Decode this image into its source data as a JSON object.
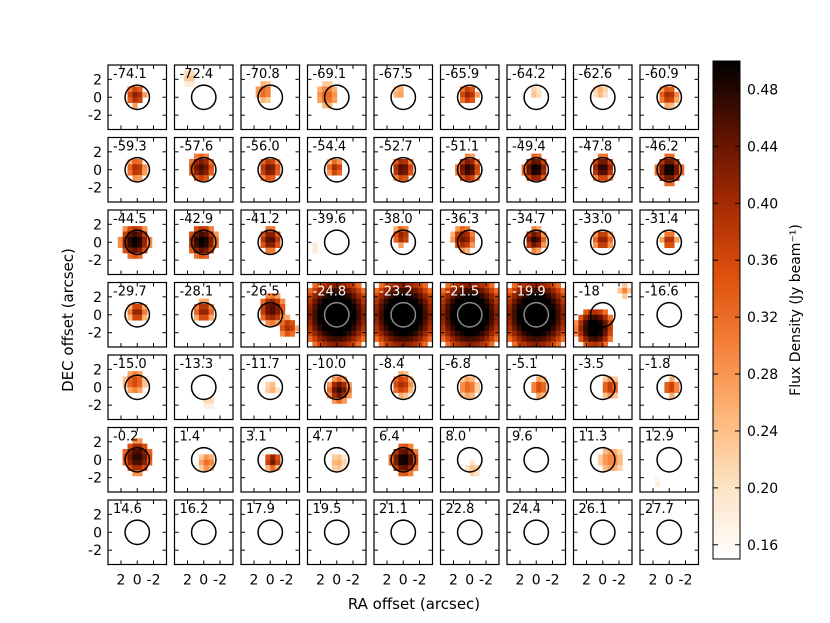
{
  "chart_data": {
    "type": "heatmap",
    "layout": "channel-map grid",
    "xlabel": "RA offset (arcsec)",
    "ylabel": "DEC offset (arcsec)",
    "xticks": [
      "2",
      "0",
      "-2"
    ],
    "yticks": [
      "-2",
      "0",
      "2"
    ],
    "xlim": [
      3.6,
      -3.6
    ],
    "ylim": [
      3.6,
      -3.6
    ],
    "circle_radius_arcsec": 1.5,
    "colorbar": {
      "label": "Flux Density (Jy beam⁻¹)",
      "ticks": [
        "0.16",
        "0.20",
        "0.24",
        "0.28",
        "0.32",
        "0.36",
        "0.40",
        "0.44",
        "0.48"
      ],
      "min": 0.15,
      "max": 0.5,
      "colormap": [
        "#ffffff",
        "#fde3c6",
        "#fdb77a",
        "#f5813a",
        "#dd4f0c",
        "#a52a03",
        "#5a1100",
        "#000000"
      ]
    },
    "panels": [
      {
        "label": "-74.1",
        "emission": [
          {
            "x": 0.2,
            "y": 0.2,
            "r": 1.2,
            "peak": 0.42
          }
        ]
      },
      {
        "label": "-72.4",
        "emission": [
          {
            "x": 1.8,
            "y": 2.2,
            "r": 0.8,
            "peak": 0.24
          }
        ]
      },
      {
        "label": "-70.8",
        "emission": [
          {
            "x": 0.8,
            "y": 0.6,
            "r": 1.1,
            "peak": 0.33
          }
        ]
      },
      {
        "label": "-69.1",
        "emission": [
          {
            "x": 1.2,
            "y": 0.2,
            "r": 1.4,
            "peak": 0.33
          }
        ]
      },
      {
        "label": "-67.5",
        "emission": [
          {
            "x": 0.5,
            "y": 0.5,
            "r": 0.8,
            "peak": 0.28
          }
        ]
      },
      {
        "label": "-65.9",
        "emission": [
          {
            "x": 0.2,
            "y": 0.3,
            "r": 1.2,
            "peak": 0.41
          }
        ]
      },
      {
        "label": "-64.2",
        "emission": [
          {
            "x": 0.2,
            "y": 0.5,
            "r": 0.7,
            "peak": 0.24
          }
        ]
      },
      {
        "label": "-62.6",
        "emission": [
          {
            "x": 0.3,
            "y": 0.7,
            "r": 0.8,
            "peak": 0.26
          }
        ]
      },
      {
        "label": "-60.9",
        "emission": [
          {
            "x": 0.1,
            "y": 0.2,
            "r": 1.2,
            "peak": 0.4
          }
        ]
      },
      {
        "label": "-59.3",
        "emission": [
          {
            "x": 0.1,
            "y": 0.1,
            "r": 1.2,
            "peak": 0.4
          }
        ]
      },
      {
        "label": "-57.6",
        "emission": [
          {
            "x": 0.3,
            "y": 0.2,
            "r": 1.6,
            "peak": 0.46
          }
        ]
      },
      {
        "label": "-56.0",
        "emission": [
          {
            "x": 0.1,
            "y": 0.1,
            "r": 1.4,
            "peak": 0.44
          }
        ]
      },
      {
        "label": "-54.4",
        "emission": [
          {
            "x": 0.2,
            "y": 0.2,
            "r": 1.0,
            "peak": 0.4
          }
        ]
      },
      {
        "label": "-52.7",
        "emission": [
          {
            "x": 0.1,
            "y": 0.1,
            "r": 1.4,
            "peak": 0.46
          }
        ]
      },
      {
        "label": "-51.1",
        "emission": [
          {
            "x": 0.2,
            "y": 0.1,
            "r": 1.5,
            "peak": 0.48
          }
        ]
      },
      {
        "label": "-49.4",
        "emission": [
          {
            "x": 0.1,
            "y": 0.1,
            "r": 1.6,
            "peak": 0.5
          }
        ]
      },
      {
        "label": "-47.8",
        "emission": [
          {
            "x": 0.0,
            "y": 0.2,
            "r": 1.5,
            "peak": 0.48
          }
        ]
      },
      {
        "label": "-46.2",
        "emission": [
          {
            "x": 0.0,
            "y": 0.0,
            "r": 1.7,
            "peak": 0.5
          }
        ]
      },
      {
        "label": "-44.5",
        "emission": [
          {
            "x": 0.3,
            "y": 0.1,
            "r": 1.9,
            "peak": 0.5
          }
        ]
      },
      {
        "label": "-42.9",
        "emission": [
          {
            "x": 0.2,
            "y": 0.1,
            "r": 1.9,
            "peak": 0.5
          }
        ]
      },
      {
        "label": "-41.2",
        "emission": [
          {
            "x": 0.0,
            "y": 0.3,
            "r": 1.4,
            "peak": 0.46
          }
        ]
      },
      {
        "label": "-39.6",
        "emission": [
          {
            "x": 2.8,
            "y": -0.6,
            "r": 0.5,
            "peak": 0.2
          }
        ]
      },
      {
        "label": "-38.0",
        "emission": [
          {
            "x": 0.2,
            "y": 0.7,
            "r": 1.1,
            "peak": 0.42
          }
        ]
      },
      {
        "label": "-36.3",
        "emission": [
          {
            "x": 0.8,
            "y": 0.4,
            "r": 1.4,
            "peak": 0.44
          }
        ]
      },
      {
        "label": "-34.7",
        "emission": [
          {
            "x": 0.2,
            "y": 0.3,
            "r": 1.3,
            "peak": 0.48
          }
        ]
      },
      {
        "label": "-33.0",
        "emission": [
          {
            "x": 0.0,
            "y": 0.3,
            "r": 1.2,
            "peak": 0.42
          }
        ]
      },
      {
        "label": "-31.4",
        "emission": [
          {
            "x": 0.0,
            "y": 0.2,
            "r": 1.0,
            "peak": 0.4
          }
        ]
      },
      {
        "label": "-29.7",
        "emission": [
          {
            "x": 0.0,
            "y": 0.3,
            "r": 1.1,
            "peak": 0.42
          }
        ]
      },
      {
        "label": "-28.1",
        "emission": [
          {
            "x": 0.0,
            "y": 0.4,
            "r": 1.2,
            "peak": 0.42
          }
        ]
      },
      {
        "label": "-26.5",
        "emission": [
          {
            "x": -0.2,
            "y": 0.6,
            "r": 1.7,
            "peak": 0.46
          },
          {
            "x": -2.2,
            "y": -1.4,
            "r": 1.2,
            "peak": 0.4
          }
        ]
      },
      {
        "label": "-24.8",
        "emission": [
          {
            "x": 0.0,
            "y": 0.0,
            "r": 4.5,
            "peak": 0.55
          }
        ]
      },
      {
        "label": "-23.2",
        "emission": [
          {
            "x": 0.0,
            "y": 0.0,
            "r": 4.5,
            "peak": 0.55
          }
        ]
      },
      {
        "label": "-21.5",
        "emission": [
          {
            "x": 0.0,
            "y": 0.0,
            "r": 4.5,
            "peak": 0.55
          }
        ]
      },
      {
        "label": "-19.9",
        "emission": [
          {
            "x": 0.0,
            "y": 0.0,
            "r": 4.5,
            "peak": 0.55
          }
        ]
      },
      {
        "label": "-18",
        "emission": [
          {
            "x": 1.0,
            "y": -1.5,
            "r": 2.4,
            "peak": 0.52
          },
          {
            "x": -2.7,
            "y": 2.7,
            "r": 0.7,
            "peak": 0.3
          }
        ]
      },
      {
        "label": "-16.6",
        "emission": []
      },
      {
        "label": "-15.0",
        "emission": [
          {
            "x": 0.3,
            "y": 0.6,
            "r": 1.3,
            "peak": 0.36
          }
        ]
      },
      {
        "label": "-13.3",
        "emission": [
          {
            "x": -0.6,
            "y": -1.6,
            "r": 0.6,
            "peak": 0.22
          }
        ]
      },
      {
        "label": "-11.7",
        "emission": [
          {
            "x": -0.2,
            "y": -0.1,
            "r": 0.8,
            "peak": 0.26
          }
        ]
      },
      {
        "label": "-10.0",
        "emission": [
          {
            "x": -0.3,
            "y": -0.3,
            "r": 1.4,
            "peak": 0.47
          }
        ]
      },
      {
        "label": "-8.4",
        "emission": [
          {
            "x": 0.2,
            "y": 0.3,
            "r": 1.3,
            "peak": 0.4
          }
        ]
      },
      {
        "label": "-6.8",
        "emission": [
          {
            "x": 0.2,
            "y": 0.0,
            "r": 1.2,
            "peak": 0.33
          }
        ]
      },
      {
        "label": "-5.1",
        "emission": [
          {
            "x": -0.4,
            "y": 0.0,
            "r": 1.1,
            "peak": 0.36
          }
        ]
      },
      {
        "label": "-3.5",
        "emission": [
          {
            "x": -0.9,
            "y": 0.0,
            "r": 1.1,
            "peak": 0.38
          }
        ]
      },
      {
        "label": "-1.8",
        "emission": [
          {
            "x": -0.2,
            "y": 0.0,
            "r": 1.0,
            "peak": 0.38
          }
        ]
      },
      {
        "label": "-0.2",
        "emission": [
          {
            "x": 0.0,
            "y": 0.3,
            "r": 1.9,
            "peak": 0.48
          }
        ]
      },
      {
        "label": "1.4",
        "emission": [
          {
            "x": -0.4,
            "y": -0.3,
            "r": 1.0,
            "peak": 0.32
          }
        ]
      },
      {
        "label": "3.1",
        "emission": [
          {
            "x": -0.3,
            "y": -0.1,
            "r": 1.0,
            "peak": 0.44
          }
        ]
      },
      {
        "label": "4.7",
        "emission": [
          {
            "x": -0.1,
            "y": -0.3,
            "r": 1.0,
            "peak": 0.26
          }
        ]
      },
      {
        "label": "6.4",
        "emission": [
          {
            "x": -0.1,
            "y": 0.0,
            "r": 1.8,
            "peak": 0.5
          }
        ]
      },
      {
        "label": "8.0",
        "emission": [
          {
            "x": -0.4,
            "y": -1.0,
            "r": 0.8,
            "peak": 0.24
          }
        ]
      },
      {
        "label": "9.6",
        "emission": []
      },
      {
        "label": "11.3",
        "emission": [
          {
            "x": -1.0,
            "y": 0.0,
            "r": 1.5,
            "peak": 0.3
          }
        ]
      },
      {
        "label": "12.9",
        "emission": [
          {
            "x": 1.5,
            "y": -2.5,
            "r": 0.5,
            "peak": 0.18
          }
        ]
      },
      {
        "label": "14.6",
        "emission": []
      },
      {
        "label": "16.2",
        "emission": []
      },
      {
        "label": "17.9",
        "emission": []
      },
      {
        "label": "19.5",
        "emission": []
      },
      {
        "label": "21.1",
        "emission": []
      },
      {
        "label": "22.8",
        "emission": []
      },
      {
        "label": "24.4",
        "emission": []
      },
      {
        "label": "26.1",
        "emission": []
      },
      {
        "label": "27.7",
        "emission": []
      }
    ]
  }
}
